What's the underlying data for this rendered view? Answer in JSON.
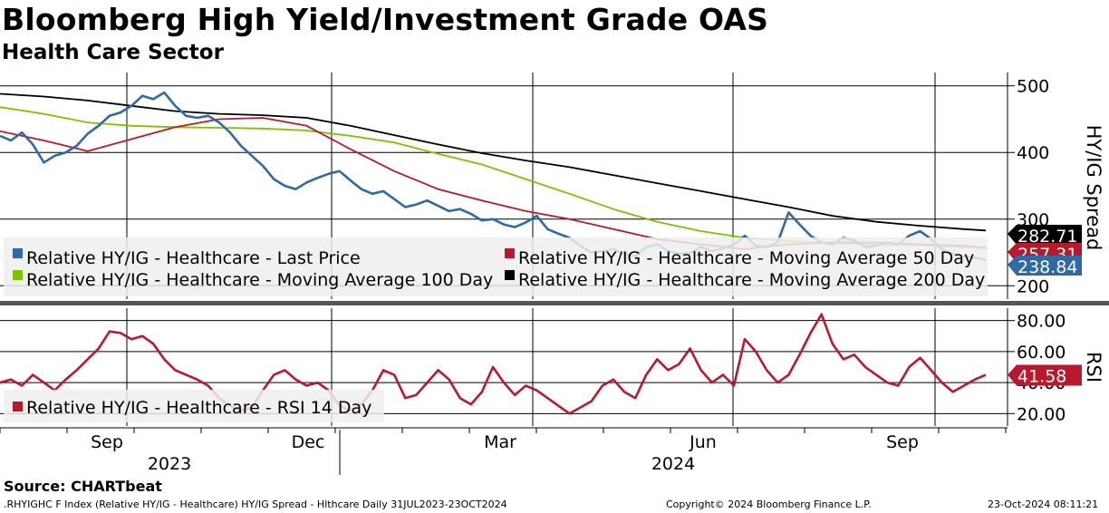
{
  "header": {
    "title": "Bloomberg High Yield/Investment Grade OAS",
    "subtitle": "Health Care Sector"
  },
  "footer": {
    "source": "Source: CHARTbeat",
    "index_line": ".RHYIGHC F Index (Relative HY/IG - Healthcare) HY/IG Spread - Hlthcare  Daily 31JUL2023-23OCT2024",
    "copyright": "Copyright© 2024 Bloomberg Finance L.P.",
    "timestamp": "23-Oct-2024 08:11:21"
  },
  "colors": {
    "blue": "#2f6aa5",
    "red": "#b8192f",
    "green": "#7cc400",
    "black": "#000000"
  },
  "chart_data": [
    {
      "type": "line",
      "ylabel": "HY/IG Spread",
      "ylim": [
        180,
        520
      ],
      "yticks": [
        "200",
        "300",
        "400",
        "500"
      ],
      "ytick_values": [
        200,
        300,
        400,
        500
      ],
      "x_month_ticks": [
        "Sep",
        "Dec",
        "Mar",
        "Jun",
        "Sep"
      ],
      "x_year_labels": [
        "2023",
        "2024"
      ],
      "legend": [
        {
          "label": "Relative HY/IG - Healthcare - Last Price",
          "color": "#2f6aa5"
        },
        {
          "label": "Relative HY/IG - Healthcare - Moving Average 50 Day",
          "color": "#b8192f"
        },
        {
          "label": "Relative HY/IG - Healthcare - Moving Average 100 Day",
          "color": "#7cc400"
        },
        {
          "label": "Relative HY/IG - Healthcare - Moving Average 200 Day",
          "color": "#000000"
        }
      ],
      "last_value_labels": [
        {
          "text": "282.71",
          "color": "#000000"
        },
        {
          "text": "257.31",
          "color": "#b8192f"
        },
        {
          "text": "238.84",
          "color": "#2f6aa5"
        }
      ],
      "series": [
        {
          "name": "Relative HY/IG - Healthcare - Last Price",
          "color": "#2f6aa5",
          "x": [
            0,
            5,
            10,
            15,
            20,
            25,
            30,
            35,
            40,
            45,
            50,
            55,
            60,
            65,
            70,
            75,
            80,
            85,
            90,
            95,
            100,
            105,
            110,
            115,
            120,
            125,
            130,
            135,
            140,
            145,
            150,
            155,
            160,
            165,
            170,
            175,
            180,
            185,
            190,
            195,
            200,
            205,
            210,
            215,
            220,
            225,
            230,
            235,
            240,
            245,
            250,
            255,
            260,
            265,
            270,
            275,
            280,
            285,
            290,
            295,
            300,
            305,
            310,
            315,
            320,
            325,
            330,
            335,
            340,
            345,
            350,
            355,
            360,
            365,
            370,
            375,
            380,
            385,
            390,
            395,
            400,
            405,
            410,
            415,
            420,
            425,
            430,
            435,
            440,
            445,
            450
          ],
          "values": [
            425,
            418,
            430,
            412,
            385,
            395,
            400,
            410,
            428,
            440,
            455,
            460,
            470,
            485,
            480,
            490,
            470,
            455,
            452,
            455,
            445,
            430,
            410,
            395,
            380,
            360,
            350,
            345,
            355,
            362,
            368,
            372,
            358,
            345,
            338,
            342,
            330,
            318,
            322,
            328,
            320,
            312,
            315,
            308,
            298,
            300,
            292,
            288,
            295,
            305,
            285,
            278,
            272,
            260,
            250,
            252,
            255,
            248,
            244,
            258,
            262,
            252,
            248,
            249,
            258,
            252,
            256,
            262,
            275,
            260,
            258,
            265,
            310,
            292,
            275,
            265,
            262,
            272,
            268,
            258,
            260,
            265,
            262,
            275,
            282,
            270,
            255,
            248,
            244,
            242,
            239
          ],
          "x_dates_note": ""
        },
        {
          "name": "Relative HY/IG - Healthcare - Moving Average 50 Day",
          "color": "#b8192f",
          "x": [
            0,
            20,
            40,
            60,
            80,
            100,
            120,
            140,
            160,
            180,
            200,
            220,
            240,
            260,
            280,
            300,
            320,
            340,
            360,
            380,
            400,
            420,
            440,
            450
          ],
          "values": [
            432,
            418,
            402,
            420,
            438,
            450,
            452,
            440,
            405,
            372,
            345,
            328,
            312,
            300,
            285,
            270,
            262,
            255,
            262,
            265,
            265,
            262,
            260,
            257
          ]
        },
        {
          "name": "Relative HY/IG - Healthcare - Moving Average 100 Day",
          "color": "#7cc400",
          "x": [
            0,
            20,
            40,
            60,
            80,
            100,
            120,
            140,
            160,
            180,
            200,
            220,
            240,
            260,
            280,
            300,
            320,
            340,
            360,
            380,
            400,
            420,
            440,
            450
          ],
          "values": [
            468,
            458,
            445,
            440,
            438,
            437,
            436,
            433,
            425,
            415,
            398,
            382,
            360,
            338,
            315,
            296,
            282,
            272,
            267,
            264,
            262,
            261,
            258,
            256
          ]
        },
        {
          "name": "Relative HY/IG - Healthcare - Moving Average 200 Day",
          "color": "#000000",
          "x": [
            0,
            20,
            40,
            60,
            80,
            100,
            120,
            140,
            160,
            180,
            200,
            220,
            240,
            260,
            280,
            300,
            320,
            340,
            360,
            380,
            400,
            420,
            440,
            450
          ],
          "values": [
            488,
            484,
            478,
            470,
            462,
            458,
            456,
            452,
            440,
            426,
            412,
            399,
            388,
            378,
            366,
            354,
            342,
            330,
            318,
            305,
            296,
            290,
            285,
            283
          ]
        }
      ]
    },
    {
      "type": "line",
      "ylabel": "RSI",
      "ylim": [
        12,
        88
      ],
      "yticks": [
        "20.00",
        "40.00",
        "60.00",
        "80.00"
      ],
      "ytick_values": [
        20,
        40,
        60,
        80
      ],
      "legend": [
        {
          "label": "Relative HY/IG - Healthcare - RSI 14 Day",
          "color": "#b8192f"
        }
      ],
      "last_value_labels": [
        {
          "text": "41.58",
          "color": "#b8192f"
        }
      ],
      "series": [
        {
          "name": "Relative HY/IG - Healthcare - RSI 14 Day",
          "color": "#b8192f",
          "x": [
            0,
            5,
            10,
            15,
            20,
            25,
            30,
            35,
            40,
            45,
            50,
            55,
            60,
            65,
            70,
            75,
            80,
            85,
            90,
            95,
            100,
            105,
            110,
            115,
            120,
            125,
            130,
            135,
            140,
            145,
            150,
            155,
            160,
            165,
            170,
            175,
            180,
            185,
            190,
            195,
            200,
            205,
            210,
            215,
            220,
            225,
            230,
            235,
            240,
            245,
            250,
            255,
            260,
            265,
            270,
            275,
            280,
            285,
            290,
            295,
            300,
            305,
            310,
            315,
            320,
            325,
            330,
            335,
            340,
            345,
            350,
            355,
            360,
            365,
            370,
            375,
            380,
            385,
            390,
            395,
            400,
            405,
            410,
            415,
            420,
            425,
            430,
            435,
            440,
            445,
            450
          ],
          "values": [
            40,
            42,
            38,
            45,
            40,
            35,
            42,
            48,
            55,
            62,
            73,
            72,
            68,
            70,
            65,
            55,
            48,
            45,
            42,
            38,
            30,
            25,
            22,
            24,
            35,
            45,
            48,
            42,
            38,
            40,
            35,
            25,
            22,
            26,
            35,
            48,
            45,
            30,
            32,
            40,
            48,
            42,
            30,
            26,
            34,
            50,
            40,
            32,
            38,
            35,
            30,
            25,
            20,
            24,
            28,
            38,
            42,
            34,
            30,
            45,
            55,
            48,
            52,
            62,
            48,
            40,
            45,
            38,
            68,
            60,
            48,
            40,
            45,
            58,
            72,
            84,
            65,
            55,
            58,
            50,
            45,
            40,
            38,
            50,
            56,
            48,
            40,
            34,
            38,
            42,
            45
          ]
        }
      ]
    }
  ]
}
